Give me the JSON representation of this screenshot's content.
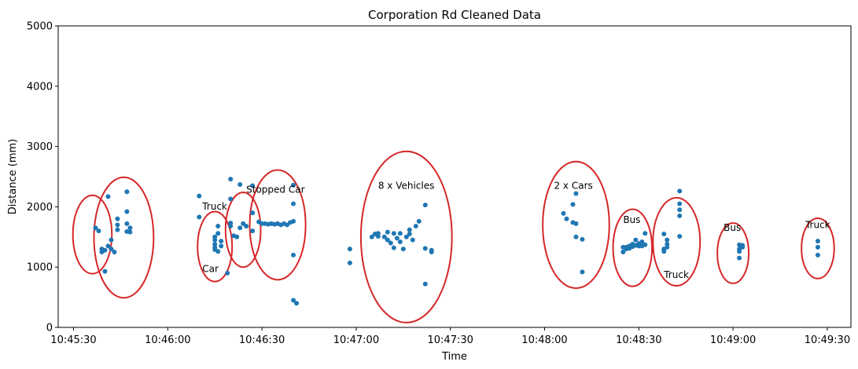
{
  "chart_data": {
    "type": "scatter",
    "title": "Corporation Rd Cleaned Data",
    "xlabel": "Time",
    "ylabel": "Distance (mm)",
    "ylim": [
      0,
      5000
    ],
    "yticks": [
      0,
      1000,
      2000,
      3000,
      4000,
      5000
    ],
    "xlim": [
      "10:45:30",
      "10:49:30"
    ],
    "xticks": [
      "10:45:30",
      "10:46:00",
      "10:46:30",
      "10:47:00",
      "10:47:30",
      "10:48:00",
      "10:48:30",
      "10:49:00",
      "10:49:30"
    ],
    "grid": false,
    "point_color": "#1f77b4",
    "circle_color": "#d62728",
    "points": [
      {
        "x": "10:45:37",
        "y": 1650
      },
      {
        "x": "10:45:38",
        "y": 1600
      },
      {
        "x": "10:45:39",
        "y": 1300
      },
      {
        "x": "10:45:39",
        "y": 1250
      },
      {
        "x": "10:45:40",
        "y": 1280
      },
      {
        "x": "10:45:40",
        "y": 930
      },
      {
        "x": "10:45:41",
        "y": 2170
      },
      {
        "x": "10:45:41",
        "y": 1350
      },
      {
        "x": "10:45:42",
        "y": 1300
      },
      {
        "x": "10:45:42",
        "y": 1450
      },
      {
        "x": "10:45:43",
        "y": 1250
      },
      {
        "x": "10:45:44",
        "y": 1800
      },
      {
        "x": "10:45:44",
        "y": 1700
      },
      {
        "x": "10:45:44",
        "y": 1620
      },
      {
        "x": "10:45:47",
        "y": 2250
      },
      {
        "x": "10:45:47",
        "y": 1920
      },
      {
        "x": "10:45:47",
        "y": 1720
      },
      {
        "x": "10:45:47",
        "y": 1590
      },
      {
        "x": "10:45:48",
        "y": 1650
      },
      {
        "x": "10:45:48",
        "y": 1580
      },
      {
        "x": "10:46:10",
        "y": 2180
      },
      {
        "x": "10:46:10",
        "y": 1830
      },
      {
        "x": "10:46:15",
        "y": 1500
      },
      {
        "x": "10:46:15",
        "y": 1450
      },
      {
        "x": "10:46:15",
        "y": 1380
      },
      {
        "x": "10:46:15",
        "y": 1330
      },
      {
        "x": "10:46:15",
        "y": 1290
      },
      {
        "x": "10:46:16",
        "y": 1680
      },
      {
        "x": "10:46:16",
        "y": 1560
      },
      {
        "x": "10:46:16",
        "y": 1260
      },
      {
        "x": "10:46:17",
        "y": 1430
      },
      {
        "x": "10:46:17",
        "y": 1350
      },
      {
        "x": "10:46:19",
        "y": 900
      },
      {
        "x": "10:46:20",
        "y": 2460
      },
      {
        "x": "10:46:20",
        "y": 2130
      },
      {
        "x": "10:46:20",
        "y": 1730
      },
      {
        "x": "10:46:20",
        "y": 1680
      },
      {
        "x": "10:46:21",
        "y": 1520
      },
      {
        "x": "10:46:22",
        "y": 1500
      },
      {
        "x": "10:46:23",
        "y": 2370
      },
      {
        "x": "10:46:23",
        "y": 1650
      },
      {
        "x": "10:46:24",
        "y": 1720
      },
      {
        "x": "10:46:25",
        "y": 1680
      },
      {
        "x": "10:46:27",
        "y": 2350
      },
      {
        "x": "10:46:27",
        "y": 1900
      },
      {
        "x": "10:46:27",
        "y": 1600
      },
      {
        "x": "10:46:29",
        "y": 1750
      },
      {
        "x": "10:46:30",
        "y": 1720
      },
      {
        "x": "10:46:31",
        "y": 1720
      },
      {
        "x": "10:46:32",
        "y": 1710
      },
      {
        "x": "10:46:33",
        "y": 1720
      },
      {
        "x": "10:46:34",
        "y": 1710
      },
      {
        "x": "10:46:35",
        "y": 1720
      },
      {
        "x": "10:46:36",
        "y": 1700
      },
      {
        "x": "10:46:37",
        "y": 1720
      },
      {
        "x": "10:46:38",
        "y": 1700
      },
      {
        "x": "10:46:39",
        "y": 1740
      },
      {
        "x": "10:46:40",
        "y": 1760
      },
      {
        "x": "10:46:40",
        "y": 2360
      },
      {
        "x": "10:46:40",
        "y": 2050
      },
      {
        "x": "10:46:40",
        "y": 1200
      },
      {
        "x": "10:46:40",
        "y": 450
      },
      {
        "x": "10:46:41",
        "y": 400
      },
      {
        "x": "10:46:58",
        "y": 1300
      },
      {
        "x": "10:46:58",
        "y": 1070
      },
      {
        "x": "10:47:05",
        "y": 1500
      },
      {
        "x": "10:47:06",
        "y": 1550
      },
      {
        "x": "10:47:07",
        "y": 1560
      },
      {
        "x": "10:47:07",
        "y": 1510
      },
      {
        "x": "10:47:09",
        "y": 1500
      },
      {
        "x": "10:47:10",
        "y": 1580
      },
      {
        "x": "10:47:10",
        "y": 1450
      },
      {
        "x": "10:47:11",
        "y": 1400
      },
      {
        "x": "10:47:12",
        "y": 1560
      },
      {
        "x": "10:47:12",
        "y": 1320
      },
      {
        "x": "10:47:13",
        "y": 1480
      },
      {
        "x": "10:47:14",
        "y": 1560
      },
      {
        "x": "10:47:14",
        "y": 1420
      },
      {
        "x": "10:47:15",
        "y": 1300
      },
      {
        "x": "10:47:16",
        "y": 1500
      },
      {
        "x": "10:47:17",
        "y": 1620
      },
      {
        "x": "10:47:17",
        "y": 1550
      },
      {
        "x": "10:47:18",
        "y": 1450
      },
      {
        "x": "10:47:19",
        "y": 1680
      },
      {
        "x": "10:47:20",
        "y": 1760
      },
      {
        "x": "10:47:22",
        "y": 2030
      },
      {
        "x": "10:47:22",
        "y": 1310
      },
      {
        "x": "10:47:22",
        "y": 720
      },
      {
        "x": "10:47:24",
        "y": 1280
      },
      {
        "x": "10:47:24",
        "y": 1250
      },
      {
        "x": "10:48:06",
        "y": 1890
      },
      {
        "x": "10:48:07",
        "y": 1800
      },
      {
        "x": "10:48:09",
        "y": 2040
      },
      {
        "x": "10:48:09",
        "y": 1740
      },
      {
        "x": "10:48:10",
        "y": 2220
      },
      {
        "x": "10:48:10",
        "y": 1720
      },
      {
        "x": "10:48:10",
        "y": 1500
      },
      {
        "x": "10:48:12",
        "y": 1460
      },
      {
        "x": "10:48:12",
        "y": 920
      },
      {
        "x": "10:48:25",
        "y": 1330
      },
      {
        "x": "10:48:25",
        "y": 1250
      },
      {
        "x": "10:48:26",
        "y": 1300
      },
      {
        "x": "10:48:26",
        "y": 1330
      },
      {
        "x": "10:48:27",
        "y": 1350
      },
      {
        "x": "10:48:27",
        "y": 1310
      },
      {
        "x": "10:48:28",
        "y": 1380
      },
      {
        "x": "10:48:28",
        "y": 1340
      },
      {
        "x": "10:48:29",
        "y": 1360
      },
      {
        "x": "10:48:29",
        "y": 1450
      },
      {
        "x": "10:48:30",
        "y": 1390
      },
      {
        "x": "10:48:30",
        "y": 1350
      },
      {
        "x": "10:48:31",
        "y": 1420
      },
      {
        "x": "10:48:31",
        "y": 1350
      },
      {
        "x": "10:48:32",
        "y": 1560
      },
      {
        "x": "10:48:32",
        "y": 1370
      },
      {
        "x": "10:48:38",
        "y": 1550
      },
      {
        "x": "10:48:38",
        "y": 1300
      },
      {
        "x": "10:48:38",
        "y": 1260
      },
      {
        "x": "10:48:39",
        "y": 1450
      },
      {
        "x": "10:48:39",
        "y": 1380
      },
      {
        "x": "10:48:39",
        "y": 1330
      },
      {
        "x": "10:48:43",
        "y": 2260
      },
      {
        "x": "10:48:43",
        "y": 2050
      },
      {
        "x": "10:48:43",
        "y": 1950
      },
      {
        "x": "10:48:43",
        "y": 1850
      },
      {
        "x": "10:48:43",
        "y": 1510
      },
      {
        "x": "10:49:02",
        "y": 1370
      },
      {
        "x": "10:49:02",
        "y": 1300
      },
      {
        "x": "10:49:02",
        "y": 1260
      },
      {
        "x": "10:49:02",
        "y": 1150
      },
      {
        "x": "10:49:03",
        "y": 1330
      },
      {
        "x": "10:49:03",
        "y": 1360
      },
      {
        "x": "10:49:27",
        "y": 1430
      },
      {
        "x": "10:49:27",
        "y": 1330
      },
      {
        "x": "10:49:27",
        "y": 1200
      }
    ],
    "circles": [
      {
        "x": "10:45:36",
        "y": 1540,
        "rx_s": 6.2,
        "ry": 650
      },
      {
        "x": "10:45:46",
        "y": 1490,
        "rx_s": 9.5,
        "ry": 1000
      },
      {
        "x": "10:46:15",
        "y": 1340,
        "rx_s": 5.5,
        "ry": 580
      },
      {
        "x": "10:46:24",
        "y": 1620,
        "rx_s": 5.6,
        "ry": 620
      },
      {
        "x": "10:46:35",
        "y": 1700,
        "rx_s": 8.9,
        "ry": 910
      },
      {
        "x": "10:47:16",
        "y": 1500,
        "rx_s": 14.5,
        "ry": 1420
      },
      {
        "x": "10:48:10",
        "y": 1700,
        "rx_s": 10.6,
        "ry": 1050
      },
      {
        "x": "10:48:28",
        "y": 1320,
        "rx_s": 6.2,
        "ry": 640
      },
      {
        "x": "10:48:42",
        "y": 1420,
        "rx_s": 7.5,
        "ry": 730
      },
      {
        "x": "10:49:00",
        "y": 1230,
        "rx_s": 5.0,
        "ry": 500
      },
      {
        "x": "10:49:27",
        "y": 1310,
        "rx_s": 5.2,
        "ry": 500
      }
    ],
    "annotations": [
      {
        "text": "Truck",
        "x": "10:46:11",
        "y": 1950
      },
      {
        "text": "Car",
        "x": "10:46:11",
        "y": 920
      },
      {
        "text": "Stopped Car",
        "x": "10:46:25",
        "y": 2230
      },
      {
        "text": "8 x Vehicles",
        "x": "10:47:07",
        "y": 2300
      },
      {
        "text": "2 x Cars",
        "x": "10:48:03",
        "y": 2300
      },
      {
        "text": "Bus",
        "x": "10:48:25",
        "y": 1730
      },
      {
        "text": "Truck",
        "x": "10:48:38",
        "y": 820
      },
      {
        "text": "Bus",
        "x": "10:48:57",
        "y": 1600
      },
      {
        "text": "Truck",
        "x": "10:49:23",
        "y": 1650
      }
    ]
  }
}
